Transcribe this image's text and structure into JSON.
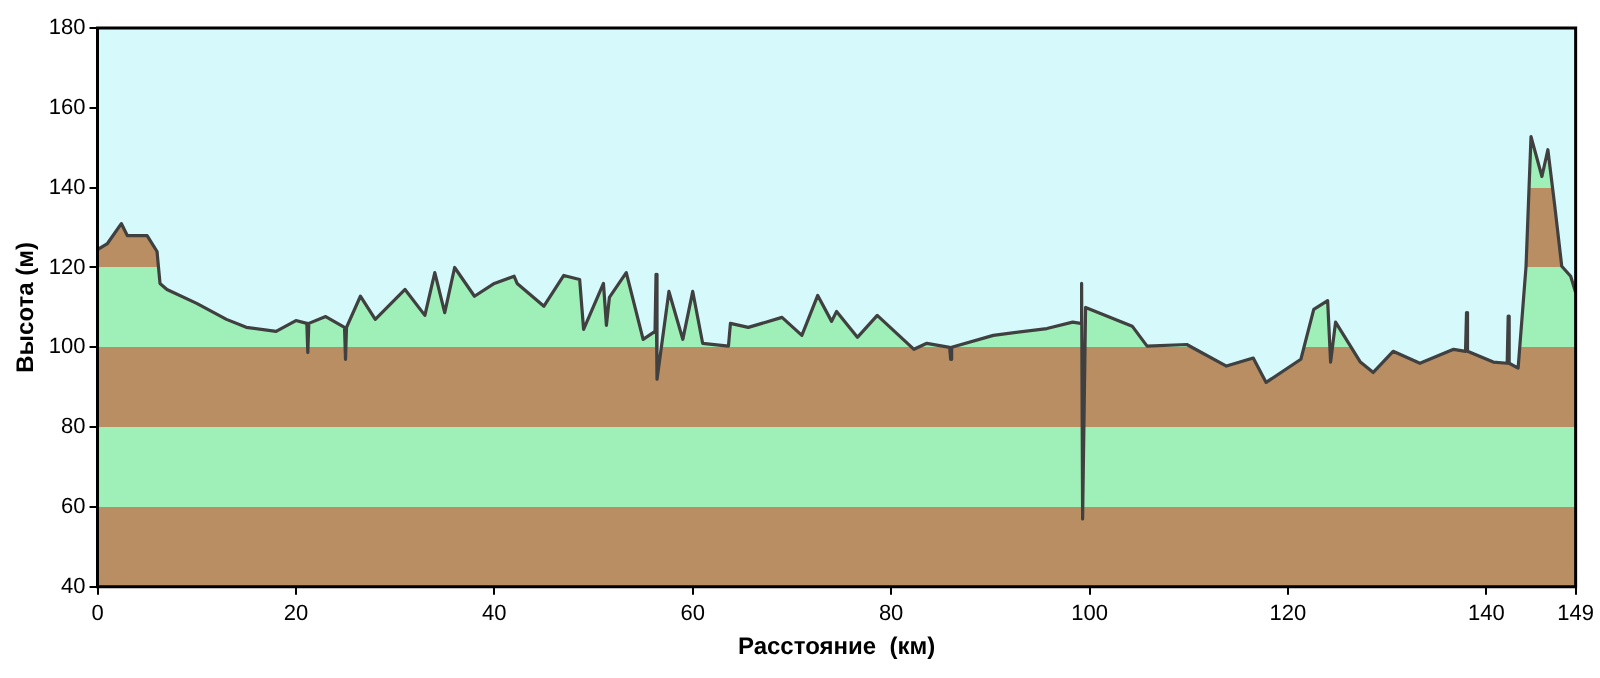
{
  "chart_data": {
    "type": "area",
    "xlabel": "Расстояние  (км)",
    "ylabel": "Высота (м)",
    "xlim": [
      0,
      149
    ],
    "xticks": [
      0,
      20,
      40,
      60,
      80,
      100,
      120,
      140,
      149
    ],
    "ylim": [
      40,
      180
    ],
    "yticks": [
      40,
      60,
      80,
      100,
      120,
      140,
      160,
      180
    ],
    "series": [
      {
        "color": "#404040",
        "x": [
          0,
          1,
          2.4,
          3,
          5,
          6,
          6.3,
          7,
          10,
          13,
          15,
          18,
          20,
          21.1,
          21.2,
          21.3,
          23,
          24.9,
          25,
          25.1,
          26.5,
          28,
          31,
          33,
          34,
          35,
          36,
          38,
          40,
          42,
          42.3,
          45,
          47,
          48.6,
          49,
          51,
          51.3,
          51.6,
          53.3,
          55,
          56.2,
          56.3,
          56.4,
          57.6,
          59,
          60,
          61,
          63.6,
          63.8,
          65.6,
          69,
          71,
          72.6,
          74,
          74.5,
          76.6,
          78.6,
          82.3,
          83.6,
          85.9,
          86,
          86.1,
          90.3,
          95.7,
          98.3,
          99.1,
          99.2,
          99.3,
          99.6,
          104.3,
          105.8,
          109.8,
          113.8,
          116.5,
          117.8,
          121.3,
          122.6,
          124,
          124.3,
          124.8,
          127.3,
          128.6,
          130.6,
          133.3,
          136.7,
          137.9,
          138,
          138.1,
          140.7,
          142.1,
          142.2,
          142.3,
          143.2,
          144,
          144.5,
          145.6,
          146.2,
          146.9,
          147.6,
          148.5,
          149
        ],
        "values": [
          124.5,
          126,
          131,
          128,
          128,
          124,
          116,
          114.5,
          111,
          107,
          105,
          104,
          106.7,
          106,
          98.7,
          106,
          107.7,
          105,
          97,
          105,
          112.8,
          107,
          114.5,
          108,
          118.7,
          108.7,
          120,
          112.8,
          116,
          117.8,
          116,
          110.3,
          118,
          117,
          104.5,
          116,
          105.5,
          112.5,
          118.7,
          102,
          104,
          118.3,
          92,
          114,
          102,
          114,
          101,
          100.3,
          106,
          105,
          107.5,
          103,
          113,
          106.5,
          109,
          102.5,
          108,
          99.5,
          101,
          100,
          97,
          100,
          103,
          104.7,
          106.3,
          106,
          116,
          57,
          110,
          105.3,
          100.3,
          100.7,
          95.3,
          97.3,
          91.2,
          97,
          109.5,
          111.7,
          96.3,
          106.3,
          96.3,
          93.7,
          99,
          96,
          99.5,
          99,
          108.7,
          99,
          96.3,
          96,
          107.8,
          96,
          94.8,
          120.3,
          152.8,
          142.8,
          149.5,
          135.3,
          120.3,
          117.8,
          113.7
        ]
      }
    ]
  }
}
